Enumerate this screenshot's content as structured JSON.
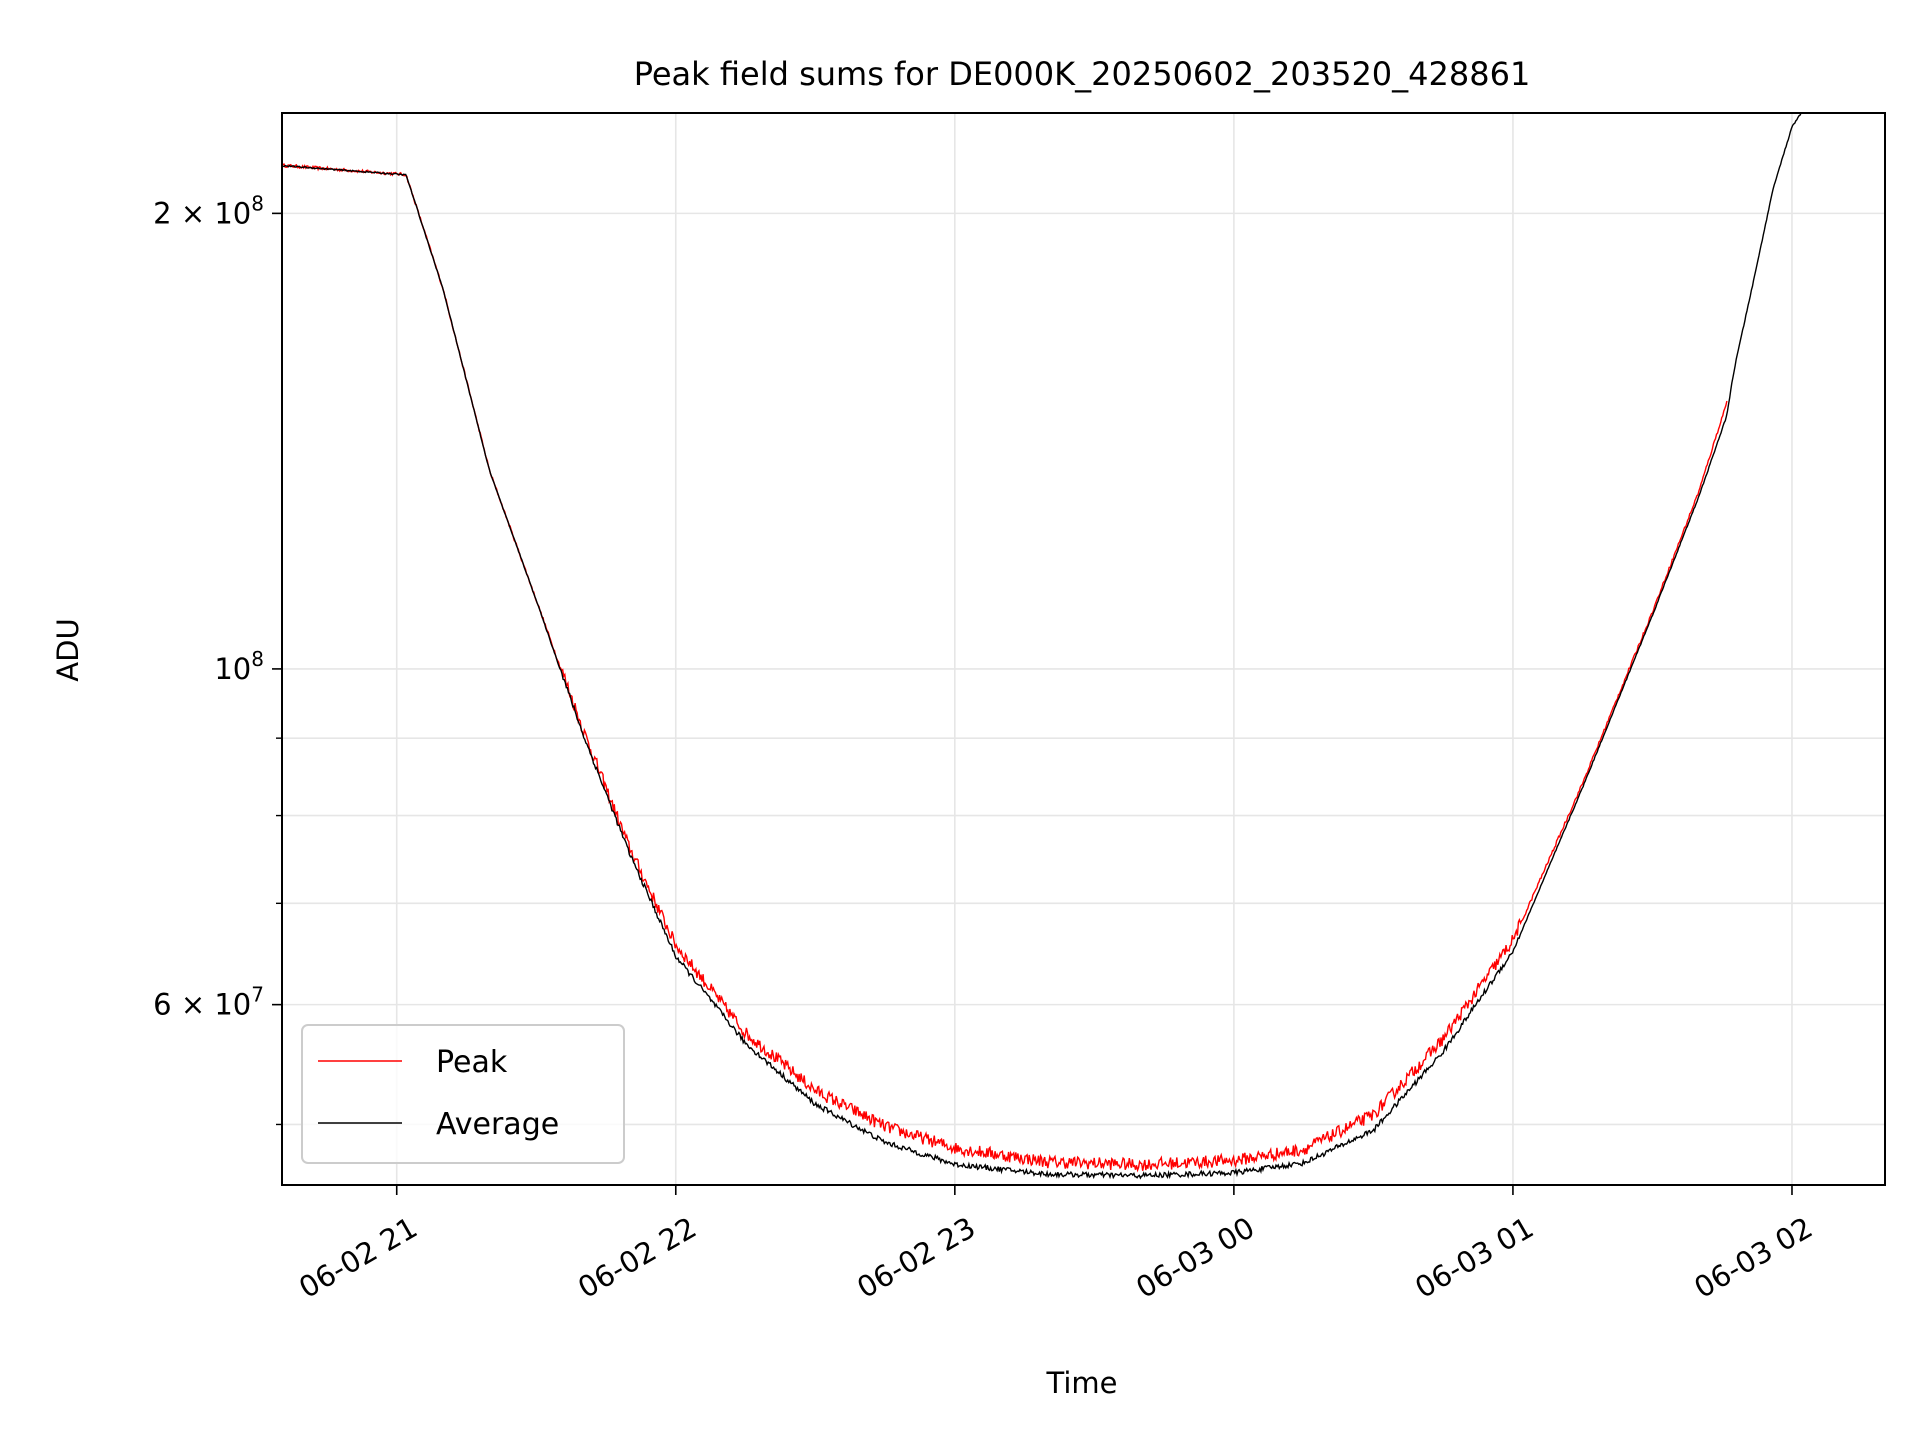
{
  "chart_data": {
    "type": "line",
    "title": "Peak field sums for DE000K_20250602_203520_428861",
    "xlabel": "Time",
    "ylabel": "ADU",
    "y_scale": "log",
    "x_range": [
      "2025-06-02T20:35:20",
      "2025-06-03T02:20:00"
    ],
    "ylim": [
      45600000,
      233000000
    ],
    "x_ticks": [
      {
        "t": "2025-06-02T21:00",
        "label": "06-02 21"
      },
      {
        "t": "2025-06-02T22:00",
        "label": "06-02 22"
      },
      {
        "t": "2025-06-02T23:00",
        "label": "06-02 23"
      },
      {
        "t": "2025-06-03T00:00",
        "label": "06-03 00"
      },
      {
        "t": "2025-06-03T01:00",
        "label": "06-03 01"
      },
      {
        "t": "2025-06-03T02:00",
        "label": "06-03 02"
      }
    ],
    "y_major_ticks": [
      {
        "value": 200000000,
        "mant": "2 × 10",
        "exp": "8"
      },
      {
        "value": 100000000,
        "mant": "10",
        "exp": "8"
      },
      {
        "value": 60000000,
        "mant": "6 × 10",
        "exp": "7"
      }
    ],
    "y_minor_ticks": [
      50000000,
      70000000,
      80000000,
      90000000
    ],
    "grid": true,
    "legend_position": "lower-left",
    "series": [
      {
        "name": "Peak",
        "color": "#ff0000",
        "noise": 0.012,
        "points": [
          [
            "2025-06-02T20:35:20",
            215000000
          ],
          [
            "2025-06-02T21:02:00",
            212000000
          ],
          [
            "2025-06-02T21:04:00",
            203000000
          ],
          [
            "2025-06-02T21:10:00",
            178000000
          ],
          [
            "2025-06-02T21:20:00",
            135000000
          ],
          [
            "2025-06-02T21:30:00",
            111000000
          ],
          [
            "2025-06-02T21:40:00",
            91000000
          ],
          [
            "2025-06-02T21:50:00",
            76000000
          ],
          [
            "2025-06-02T22:00:00",
            65500000
          ],
          [
            "2025-06-02T22:15:00",
            57300000
          ],
          [
            "2025-06-02T22:30:00",
            52500000
          ],
          [
            "2025-06-02T22:45:00",
            49700000
          ],
          [
            "2025-06-02T23:00:00",
            48100000
          ],
          [
            "2025-06-02T23:20:00",
            47100000
          ],
          [
            "2025-06-02T23:40:00",
            46900000
          ],
          [
            "2025-06-03T00:00:00",
            47200000
          ],
          [
            "2025-06-03T00:15:00",
            48000000
          ],
          [
            "2025-06-03T00:30:00",
            50600000
          ],
          [
            "2025-06-03T00:45:00",
            56800000
          ],
          [
            "2025-06-03T01:00:00",
            66000000
          ],
          [
            "2025-06-03T01:15:00",
            84000000
          ],
          [
            "2025-06-03T01:30:00",
            109000000
          ],
          [
            "2025-06-03T01:40:00",
            131000000
          ],
          [
            "2025-06-03T01:46:00",
            150000000
          ]
        ]
      },
      {
        "name": "Average",
        "color": "#000000",
        "noise": 0.008,
        "points": [
          [
            "2025-06-02T20:35:20",
            215000000
          ],
          [
            "2025-06-02T21:02:00",
            212000000
          ],
          [
            "2025-06-02T21:04:00",
            203000000
          ],
          [
            "2025-06-02T21:10:00",
            178000000
          ],
          [
            "2025-06-02T21:20:00",
            135000000
          ],
          [
            "2025-06-02T21:30:00",
            111000000
          ],
          [
            "2025-06-02T21:40:00",
            90500000
          ],
          [
            "2025-06-02T21:50:00",
            75500000
          ],
          [
            "2025-06-02T22:00:00",
            64500000
          ],
          [
            "2025-06-02T22:15:00",
            56500000
          ],
          [
            "2025-06-02T22:30:00",
            51500000
          ],
          [
            "2025-06-02T22:45:00",
            48600000
          ],
          [
            "2025-06-02T23:00:00",
            47000000
          ],
          [
            "2025-06-02T23:20:00",
            46300000
          ],
          [
            "2025-06-02T23:40:00",
            46200000
          ],
          [
            "2025-06-03T00:00:00",
            46400000
          ],
          [
            "2025-06-03T00:15:00",
            47100000
          ],
          [
            "2025-06-03T00:30:00",
            49500000
          ],
          [
            "2025-06-03T00:45:00",
            55800000
          ],
          [
            "2025-06-03T01:00:00",
            65000000
          ],
          [
            "2025-06-03T01:15:00",
            83500000
          ],
          [
            "2025-06-03T01:30:00",
            108500000
          ],
          [
            "2025-06-03T01:40:00",
            130000000
          ],
          [
            "2025-06-03T01:46:00",
            147000000
          ],
          [
            "2025-06-03T01:47:00",
            154000000
          ],
          [
            "2025-06-03T01:48:00",
            160000000
          ],
          [
            "2025-06-03T01:52:00",
            182000000
          ],
          [
            "2025-06-03T01:56:00",
            208000000
          ],
          [
            "2025-06-03T02:00:00",
            228000000
          ],
          [
            "2025-06-03T02:02:00",
            233000000
          ]
        ]
      }
    ]
  }
}
